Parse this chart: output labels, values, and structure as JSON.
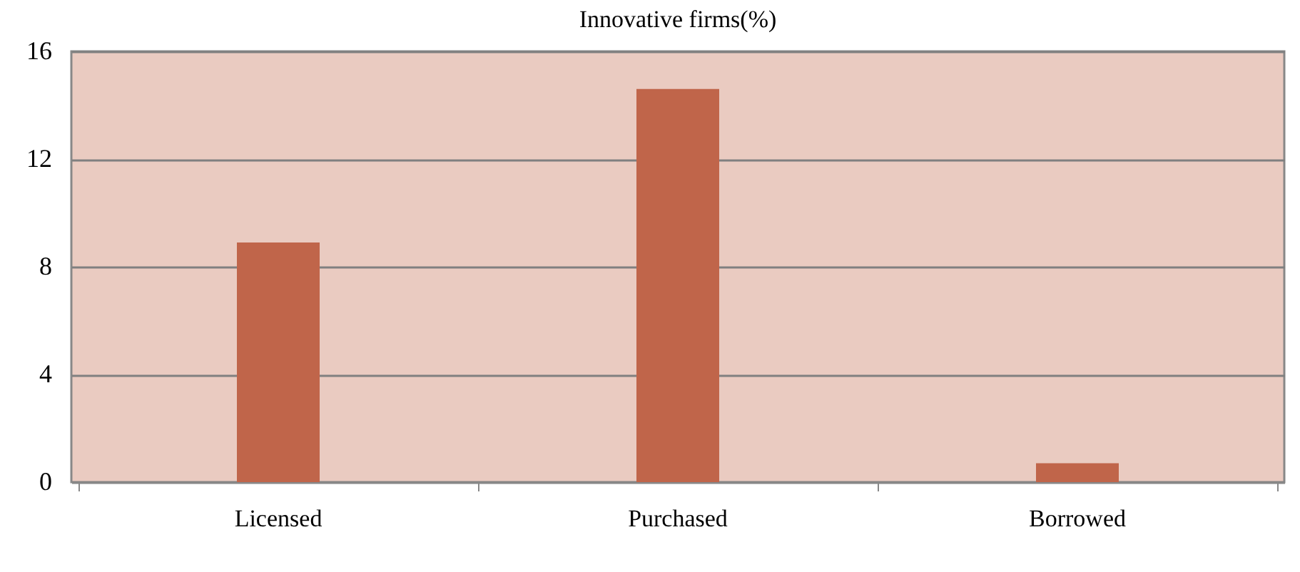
{
  "chart_data": {
    "type": "bar",
    "title": "Innovative firms(%)",
    "categories": [
      "Licensed",
      "Purchased",
      "Borrowed"
    ],
    "values": [
      8.9,
      14.6,
      0.7
    ],
    "color": "#c0654a",
    "ylim": [
      0,
      16
    ],
    "yticks": [
      0,
      4,
      8,
      12,
      16
    ],
    "grid": "y"
  }
}
